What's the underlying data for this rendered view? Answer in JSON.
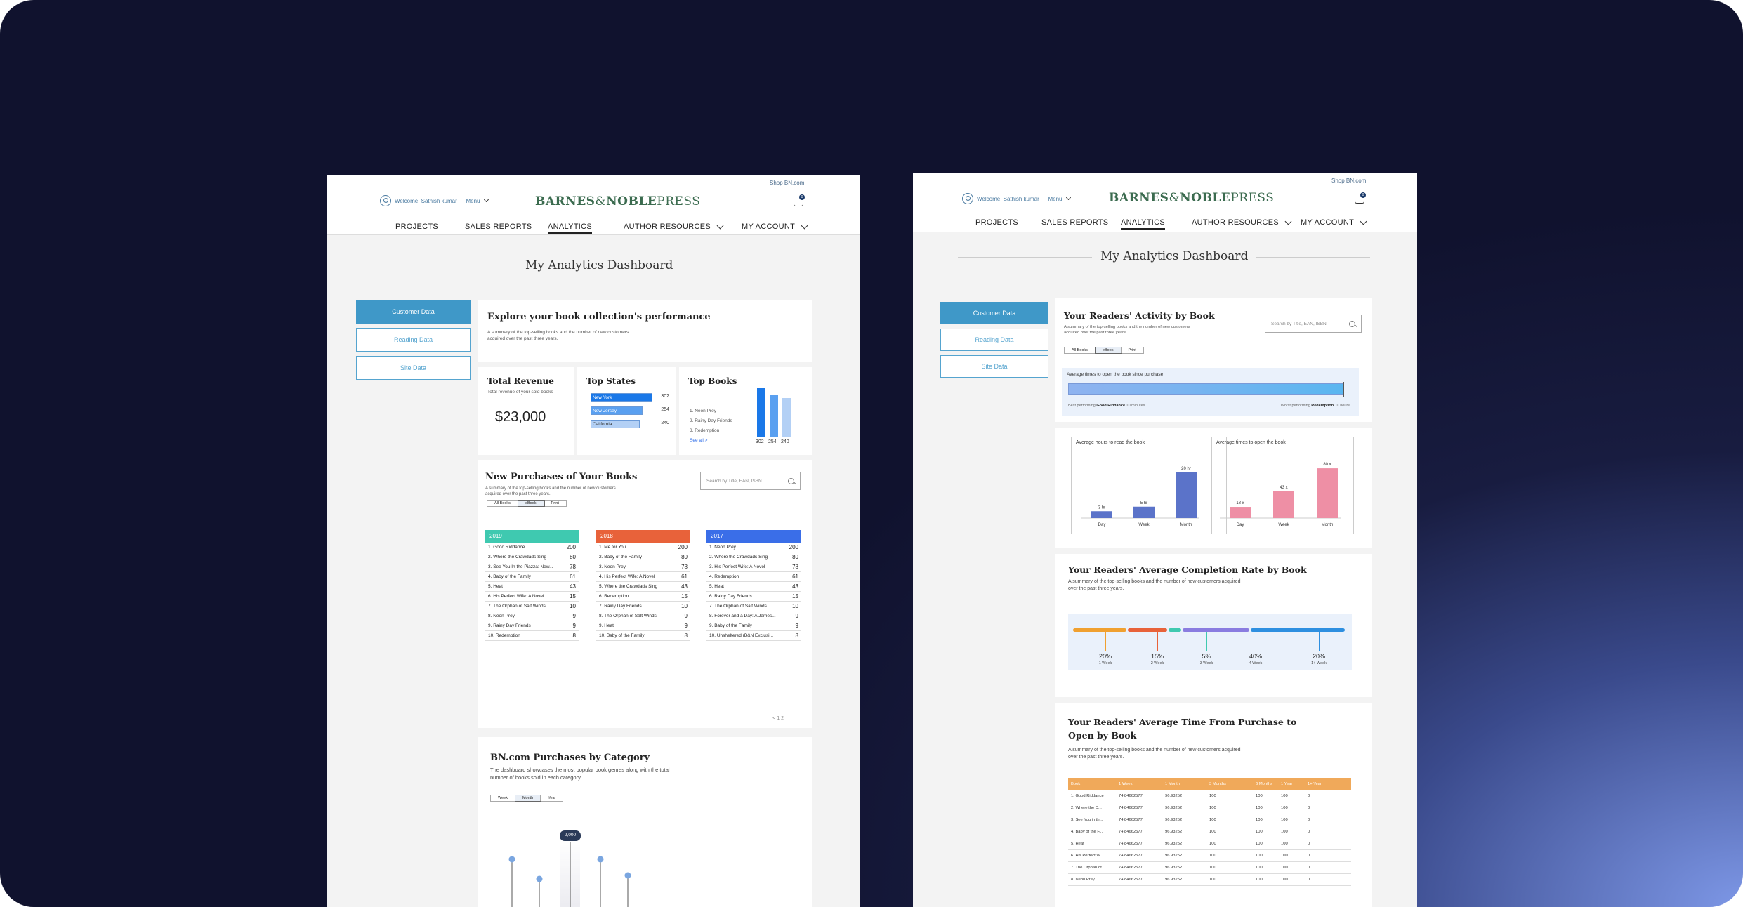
{
  "left": {
    "header": {
      "shop_link": "Shop BN.com",
      "welcome": "Welcome, Sathish kumar",
      "menu": "Menu",
      "logo_main": "BARNES",
      "logo_amp": "&",
      "logo_noble": "NOBLE",
      "logo_press": "PRESS",
      "cart_count": "0"
    },
    "nav": [
      "PROJECTS",
      "SALES REPORTS",
      "ANALYTICS",
      "AUTHOR RESOURCES",
      "MY ACCOUNT"
    ],
    "page_title": "My Analytics Dashboard",
    "sidebar": [
      "Customer Data",
      "Reading Data",
      "Site Data"
    ],
    "explore": {
      "title": "Explore your book collection's performance",
      "desc1": "A summary of the top-selling books and the number of new customers",
      "desc2": "acquired over the past three years."
    },
    "revenue": {
      "title": "Total Revenue",
      "desc": "Total revenue of your sold books",
      "value": "$23,000"
    },
    "top_states": {
      "title": "Top States",
      "items": [
        {
          "name": "New York",
          "value": "302",
          "fill": 1.0
        },
        {
          "name": "New Jersey",
          "value": "254",
          "fill": 0.84
        },
        {
          "name": "California",
          "value": "240",
          "fill": 0.79
        }
      ]
    },
    "top_books": {
      "title": "Top Books",
      "items": [
        "1. Neon Prey",
        "2. Rainy Day Friends",
        "3. Redemption"
      ],
      "see_all": "See all >",
      "values": [
        "302",
        "254",
        "240"
      ]
    },
    "purchases": {
      "title": "New Purchases of Your Books",
      "desc1": "A summary of the top-selling books and the number of new customers",
      "desc2": "acquired over the past three years.",
      "search_placeholder": "Search by Title, EAN, ISBN",
      "tabs": [
        "All Books",
        "eBook",
        "Print"
      ],
      "years": [
        {
          "year": "2019",
          "color": "#3fc9b0",
          "rows": [
            [
              "1. Good Riddance",
              "200"
            ],
            [
              "2. Where the Crawdads Sing",
              "80"
            ],
            [
              "3. See You In the Piazza: New...",
              "78"
            ],
            [
              "4. Baby of the Family",
              "61"
            ],
            [
              "5. Heat",
              "43"
            ],
            [
              "6. His Perfect Wife: A Novel",
              "15"
            ],
            [
              "7. The Orphan of Salt Winds",
              "10"
            ],
            [
              "8. Neon Prey",
              "9"
            ],
            [
              "9. Rainy Day Friends",
              "9"
            ],
            [
              "10. Redemption",
              "8"
            ]
          ]
        },
        {
          "year": "2018",
          "color": "#e8623a",
          "rows": [
            [
              "1. Me for You",
              "200"
            ],
            [
              "2. Baby of the Family",
              "80"
            ],
            [
              "3. Neon Prey",
              "78"
            ],
            [
              "4. His Perfect Wife: A Novel",
              "61"
            ],
            [
              "5. Where the Crawdads Sing",
              "43"
            ],
            [
              "6. Redemption",
              "15"
            ],
            [
              "7. Rainy Day Friends",
              "10"
            ],
            [
              "8. The Orphan of Salt Winds",
              "9"
            ],
            [
              "9. Heat",
              "9"
            ],
            [
              "10. Baby of the Family",
              "8"
            ]
          ]
        },
        {
          "year": "2017",
          "color": "#3a6ee8",
          "rows": [
            [
              "1. Neon Prey",
              "200"
            ],
            [
              "2. Where the Crawdads Sing",
              "80"
            ],
            [
              "3. His Perfect Wife: A Novel",
              "78"
            ],
            [
              "4. Redemption",
              "61"
            ],
            [
              "5. Heat",
              "43"
            ],
            [
              "6. Rainy Day Friends",
              "15"
            ],
            [
              "7. The Orphan of Salt Winds",
              "10"
            ],
            [
              "8. Forever and a Day: A James...",
              "9"
            ],
            [
              "9. Baby of the Family",
              "9"
            ],
            [
              "10. Unsheltered (B&N Exclusi...",
              "8"
            ]
          ]
        }
      ],
      "pagination": "< 1 2"
    },
    "category": {
      "title": "BN.com Purchases by Category",
      "desc1": "The dashboard showcases the most popular book genres along with the total",
      "desc2": "number of books sold in each category.",
      "tabs": [
        "Week",
        "Month",
        "Year"
      ],
      "tooltip": "2,000"
    }
  },
  "right": {
    "header": {
      "shop_link": "Shop BN.com",
      "welcome": "Welcome, Sathish kumar",
      "menu": "Menu",
      "logo_main": "BARNES",
      "logo_amp": "&",
      "logo_noble": "NOBLE",
      "logo_press": "PRESS",
      "cart_count": "0"
    },
    "nav": [
      "PROJECTS",
      "SALES REPORTS",
      "ANALYTICS",
      "AUTHOR RESOURCES",
      "MY ACCOUNT"
    ],
    "page_title": "My Analytics Dashboard",
    "sidebar": [
      "Customer Data",
      "Reading Data",
      "Site Data"
    ],
    "activity": {
      "title": "Your Readers' Activity by Book",
      "desc1": "A summary of the top-selling books and the number of new customers",
      "desc2": "acquired over the past three years.",
      "search_placeholder": "Search by Title, EAN, ISBN",
      "tabs": [
        "All Books",
        "eBook",
        "Print"
      ],
      "bar_label": "Average times to open the book since purchase",
      "best_prefix": "Best performing",
      "best_book": "Good Riddance",
      "best_value": "10 minutes",
      "worst_prefix": "Worst performing",
      "worst_book": "Redemption",
      "worst_value": "10 hours"
    },
    "hours_chart": {
      "title": "Average hours to read the book",
      "categories": [
        "Day",
        "Week",
        "Month"
      ],
      "values": [
        3,
        5,
        20
      ],
      "labels": [
        "3 hr",
        "5 hr",
        "20 hr"
      ]
    },
    "opens_chart": {
      "title": "Average times to open the book",
      "categories": [
        "Day",
        "Week",
        "Month"
      ],
      "values": [
        18,
        43,
        80
      ],
      "labels": [
        "18 x",
        "43 x",
        "80 x"
      ]
    },
    "completion": {
      "title": "Your Readers' Average Completion Rate by Book",
      "desc1": "A summary of the top-selling books and the number of new customers acquired",
      "desc2": "over the past three years.",
      "segments": [
        {
          "pct": "20%",
          "label": "1 Week",
          "color": "#f0a030",
          "share": 0.2
        },
        {
          "pct": "15%",
          "label": "2 Week",
          "color": "#e8623a",
          "share": 0.15
        },
        {
          "pct": "5%",
          "label": "3 Week",
          "color": "#3fc9b0",
          "share": 0.05
        },
        {
          "pct": "40%",
          "label": "4 Week",
          "color": "#8a7ce0",
          "share": 0.25
        },
        {
          "pct": "20%",
          "label": "1+ Week",
          "color": "#2e8fe0",
          "share": 0.35
        }
      ]
    },
    "time_to_open": {
      "title1": "Your Readers' Average Time From Purchase to",
      "title2": "Open by Book",
      "desc1": "A summary of the top-selling books and the number of new customers acquired",
      "desc2": "over the past three years.",
      "columns": [
        "Book",
        "1 Week",
        "1 Month",
        "3 Months",
        "6 Months",
        "1 Year",
        "1+ Year"
      ],
      "rows": [
        [
          "1. Good Riddance",
          "74.84662577",
          "96.93252",
          "100",
          "100",
          "100",
          "0"
        ],
        [
          "2. Where the C...",
          "74.84662577",
          "96.93252",
          "100",
          "100",
          "100",
          "0"
        ],
        [
          "3. See You in th...",
          "74.84662577",
          "96.93252",
          "100",
          "100",
          "100",
          "0"
        ],
        [
          "4. Baby of the F...",
          "74.84662577",
          "96.93252",
          "100",
          "100",
          "100",
          "0"
        ],
        [
          "5. Heat",
          "74.84662577",
          "96.93252",
          "100",
          "100",
          "100",
          "0"
        ],
        [
          "6. His Perfect W...",
          "74.84662577",
          "96.93252",
          "100",
          "100",
          "100",
          "0"
        ],
        [
          "7. The Orphan of...",
          "74.84662577",
          "96.93252",
          "100",
          "100",
          "100",
          "0"
        ],
        [
          "8. Neon Prey",
          "74.84662577",
          "96.93252",
          "100",
          "100",
          "100",
          "0"
        ]
      ]
    }
  }
}
